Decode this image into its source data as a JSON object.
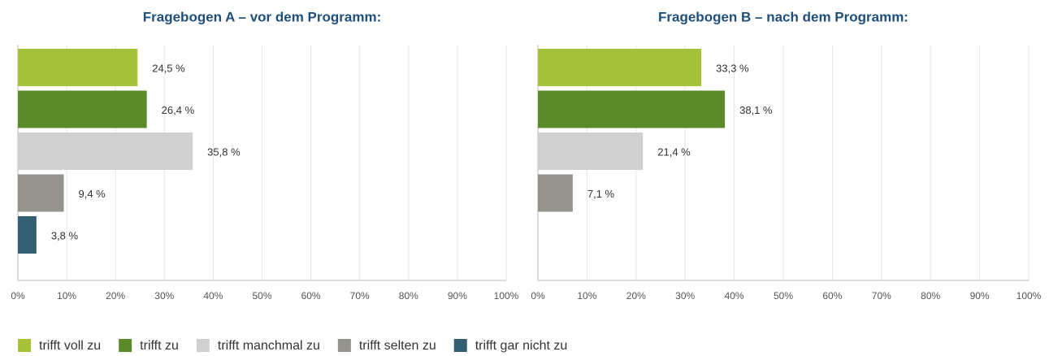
{
  "chart_data": [
    {
      "type": "bar",
      "orientation": "horizontal",
      "title": "Fragebogen A – vor dem Programm:",
      "values": [
        24.5,
        26.4,
        35.8,
        9.4,
        3.8
      ],
      "value_labels": [
        "24,5 %",
        "26,4 %",
        "35,8 %",
        "9,4 %",
        "3,8 %"
      ],
      "xlim": [
        0,
        100
      ],
      "xticks": [
        {
          "value": 0,
          "label": "0%"
        },
        {
          "value": 10,
          "label": "10%"
        },
        {
          "value": 20,
          "label": "20%"
        },
        {
          "value": 30,
          "label": "30%"
        },
        {
          "value": 40,
          "label": "40%"
        },
        {
          "value": 50,
          "label": "50%"
        },
        {
          "value": 60,
          "label": "60%"
        },
        {
          "value": 70,
          "label": "70%"
        },
        {
          "value": 80,
          "label": "80%"
        },
        {
          "value": 90,
          "label": "90%"
        },
        {
          "value": 100,
          "label": "100%"
        }
      ],
      "grid": true
    },
    {
      "type": "bar",
      "orientation": "horizontal",
      "title": "Fragebogen B – nach dem Programm:",
      "values": [
        33.3,
        38.1,
        21.4,
        7.1,
        null
      ],
      "value_labels": [
        "33,3 %",
        "38,1 %",
        "21,4 %",
        "7,1 %",
        null
      ],
      "xlim": [
        0,
        100
      ],
      "xticks": [
        {
          "value": 0,
          "label": "0%"
        },
        {
          "value": 10,
          "label": "10%"
        },
        {
          "value": 20,
          "label": "20%"
        },
        {
          "value": 30,
          "label": "30%"
        },
        {
          "value": 40,
          "label": "40%"
        },
        {
          "value": 50,
          "label": "50%"
        },
        {
          "value": 60,
          "label": "60%"
        },
        {
          "value": 70,
          "label": "70%"
        },
        {
          "value": 80,
          "label": "80%"
        },
        {
          "value": 90,
          "label": "90%"
        },
        {
          "value": 100,
          "label": "100%"
        }
      ],
      "grid": true
    }
  ],
  "legend": {
    "names": [
      "trifft voll zu",
      "trifft zu",
      "trifft manchmal zu",
      "trifft selten zu",
      "trifft gar nicht zu"
    ],
    "colors": [
      "#a6c23b",
      "#5b8a2b",
      "#d0d0d0",
      "#95948c",
      "#345f72"
    ]
  }
}
